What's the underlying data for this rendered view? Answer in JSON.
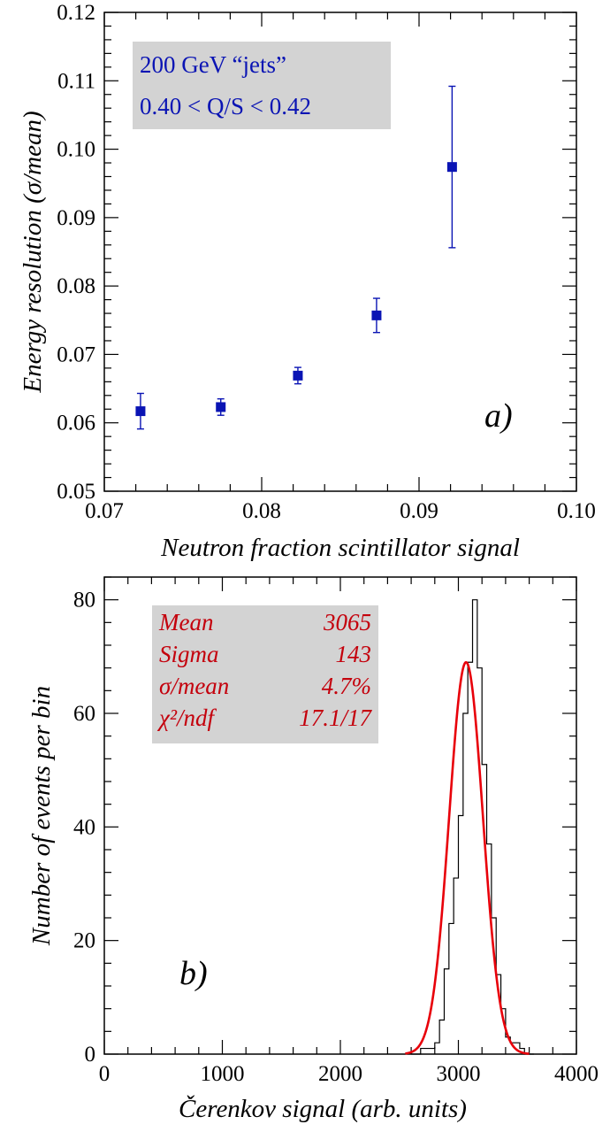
{
  "chart_data": [
    {
      "type": "scatter",
      "panel_label": "a)",
      "xlabel": "Neutron fraction scintillator signal",
      "ylabel": "Energy resolution (σ/mean)",
      "xlim": [
        0.07,
        0.1
      ],
      "ylim": [
        0.05,
        0.12
      ],
      "xticks": [
        "0.07",
        "0.08",
        "0.09",
        "0.10"
      ],
      "yticks": [
        "0.05",
        "0.06",
        "0.07",
        "0.08",
        "0.09",
        "0.10",
        "0.11",
        "0.12"
      ],
      "annotation_lines": [
        "200 GeV “jets”",
        "0.40 < Q/S < 0.42"
      ],
      "marker_color": "#0a14b4",
      "annotation_bg": "#d3d3d3",
      "points": [
        {
          "x": 0.0723,
          "y": 0.0617,
          "err": 0.0026
        },
        {
          "x": 0.0774,
          "y": 0.0623,
          "err": 0.0012
        },
        {
          "x": 0.0823,
          "y": 0.0669,
          "err": 0.0012
        },
        {
          "x": 0.0873,
          "y": 0.0757,
          "err": 0.0025
        },
        {
          "x": 0.0921,
          "y": 0.0974,
          "err": 0.0118
        }
      ]
    },
    {
      "type": "histogram",
      "panel_label": "b)",
      "xlabel": "Čerenkov signal (arb. units)",
      "ylabel": "Number of events per bin",
      "xlim": [
        0,
        4000
      ],
      "ylim": [
        0,
        84
      ],
      "xticks": [
        "0",
        "1000",
        "2000",
        "3000",
        "4000"
      ],
      "yticks": [
        "0",
        "20",
        "40",
        "60",
        "80"
      ],
      "stats": [
        {
          "label": "Mean",
          "value": "3065"
        },
        {
          "label": "Sigma",
          "value": "143"
        },
        {
          "label": "σ/mean",
          "value": "4.7%"
        },
        {
          "label": "χ²/ndf",
          "value": "17.1/17"
        }
      ],
      "fit_color": "#e8000a",
      "annotation_bg": "#d3d3d3",
      "bins": {
        "edges_start": 2600,
        "bin_width": 40,
        "counts": [
          0,
          0,
          1,
          1,
          1,
          2,
          6,
          15,
          23,
          31,
          42,
          60,
          69,
          80,
          68,
          51,
          37,
          24,
          14,
          8,
          3,
          2,
          2,
          1,
          0,
          0
        ]
      },
      "fit": {
        "mean": 3065,
        "sigma": 143,
        "amplitude": 69
      }
    }
  ]
}
